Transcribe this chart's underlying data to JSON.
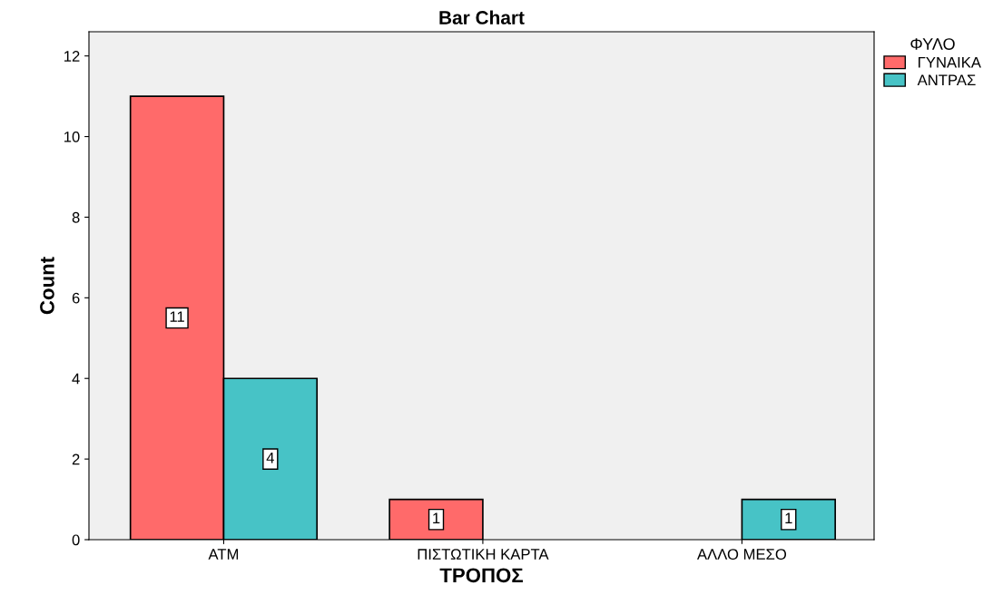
{
  "chart_data": {
    "type": "bar",
    "title": "Bar Chart",
    "xlabel": "ΤΡΟΠΟΣ",
    "ylabel": "Count",
    "legend_title": "ΦΥΛΟ",
    "categories": [
      "ATM",
      "ΠΙΣΤΩΤΙΚΗ ΚΑΡΤΑ",
      "ΑΛΛΟ ΜΕΣΟ"
    ],
    "series": [
      {
        "name": "ΓΥΝΑΙΚΑ",
        "color": "#ff6a6a",
        "values": [
          11,
          1,
          null
        ],
        "value_labels": [
          "11",
          "1",
          null
        ]
      },
      {
        "name": "ΑΝΤΡΑΣ",
        "color": "#47c3c6",
        "values": [
          4,
          null,
          1
        ],
        "value_labels": [
          "4",
          null,
          "1"
        ]
      }
    ],
    "ylim": [
      0,
      12.6
    ],
    "yticks": [
      0,
      2,
      4,
      6,
      8,
      10,
      12
    ],
    "grid": false,
    "legend": "top right"
  }
}
